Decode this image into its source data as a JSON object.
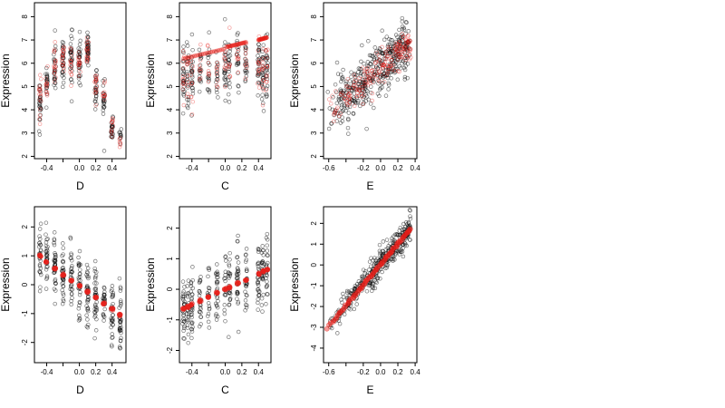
{
  "chart_data": [
    {
      "type": "scatter",
      "xlabel": "D",
      "ylabel": "Expression",
      "xlim": [
        -0.55,
        0.57
      ],
      "ylim": [
        1.9,
        8.6
      ],
      "xticks": [
        -0.4,
        -0.2,
        0.0,
        0.2,
        0.4
      ],
      "xtick_labels": [
        "-0.4",
        "",
        "0.0",
        "0.2",
        "0.4"
      ],
      "yticks": [
        2,
        3,
        4,
        5,
        6,
        7,
        8
      ],
      "ytick_labels": [
        "2",
        "3",
        "4",
        "5",
        "6",
        "7",
        "8"
      ],
      "series": [
        {
          "color": "#000000",
          "columns": [
            {
              "x": -0.48,
              "center": 4.4,
              "spread": 0.8,
              "n": 26
            },
            {
              "x": -0.4,
              "center": 5.1,
              "spread": 0.8,
              "n": 20
            },
            {
              "x": -0.3,
              "center": 5.8,
              "spread": 0.9,
              "n": 26
            },
            {
              "x": -0.2,
              "center": 6.1,
              "spread": 0.8,
              "n": 30
            },
            {
              "x": -0.1,
              "center": 6.3,
              "spread": 0.8,
              "n": 30
            },
            {
              "x": 0.0,
              "center": 6.1,
              "spread": 0.9,
              "n": 30
            },
            {
              "x": 0.1,
              "center": 6.6,
              "spread": 0.6,
              "n": 34
            },
            {
              "x": 0.2,
              "center": 5.0,
              "spread": 0.8,
              "n": 24
            },
            {
              "x": 0.3,
              "center": 4.5,
              "spread": 0.9,
              "n": 22
            },
            {
              "x": 0.4,
              "center": 3.3,
              "spread": 0.5,
              "n": 22
            },
            {
              "x": 0.5,
              "center": 3.0,
              "spread": 0.5,
              "n": 10
            }
          ]
        },
        {
          "color": "#e8201a",
          "columns": [
            {
              "x": -0.48,
              "center": 4.5,
              "spread": 0.8,
              "n": 16
            },
            {
              "x": -0.4,
              "center": 5.0,
              "spread": 0.6,
              "n": 12
            },
            {
              "x": -0.3,
              "center": 5.9,
              "spread": 0.6,
              "n": 16
            },
            {
              "x": -0.2,
              "center": 6.2,
              "spread": 0.5,
              "n": 16
            },
            {
              "x": -0.1,
              "center": 6.0,
              "spread": 0.6,
              "n": 14
            },
            {
              "x": 0.0,
              "center": 6.0,
              "spread": 0.5,
              "n": 14
            },
            {
              "x": 0.1,
              "center": 6.6,
              "spread": 0.5,
              "n": 16
            },
            {
              "x": 0.2,
              "center": 5.1,
              "spread": 0.6,
              "n": 14
            },
            {
              "x": 0.3,
              "center": 4.6,
              "spread": 0.5,
              "n": 10
            },
            {
              "x": 0.4,
              "center": 3.4,
              "spread": 0.4,
              "n": 10
            },
            {
              "x": 0.5,
              "center": 2.6,
              "spread": 0.4,
              "n": 6
            }
          ]
        }
      ]
    },
    {
      "type": "scatter",
      "xlabel": "C",
      "ylabel": "Expression",
      "xlim": [
        -0.55,
        0.55
      ],
      "ylim": [
        1.9,
        8.6
      ],
      "xticks": [
        -0.4,
        -0.2,
        0.0,
        0.2,
        0.4
      ],
      "xtick_labels": [
        "-0.4",
        "",
        "0.0",
        "0.2",
        "0.4"
      ],
      "yticks": [
        2,
        3,
        4,
        5,
        6,
        7,
        8
      ],
      "ytick_labels": [
        "2",
        "3",
        "4",
        "5",
        "6",
        "7",
        "8"
      ],
      "series": [
        {
          "color": "#000000",
          "columns": [
            {
              "x": -0.5,
              "center": 5.3,
              "spread": 1.3,
              "n": 24
            },
            {
              "x": -0.45,
              "center": 5.5,
              "spread": 1.2,
              "n": 22
            },
            {
              "x": -0.4,
              "center": 5.4,
              "spread": 1.3,
              "n": 24
            },
            {
              "x": -0.3,
              "center": 5.6,
              "spread": 1.0,
              "n": 18
            },
            {
              "x": -0.2,
              "center": 5.8,
              "spread": 1.0,
              "n": 18
            },
            {
              "x": -0.1,
              "center": 5.6,
              "spread": 1.1,
              "n": 16
            },
            {
              "x": 0.0,
              "center": 5.9,
              "spread": 1.2,
              "n": 24
            },
            {
              "x": 0.05,
              "center": 6.0,
              "spread": 1.1,
              "n": 20
            },
            {
              "x": 0.15,
              "center": 6.0,
              "spread": 1.0,
              "n": 20
            },
            {
              "x": 0.25,
              "center": 6.2,
              "spread": 1.0,
              "n": 20
            },
            {
              "x": 0.4,
              "center": 5.9,
              "spread": 1.3,
              "n": 24
            },
            {
              "x": 0.45,
              "center": 5.6,
              "spread": 1.3,
              "n": 26
            },
            {
              "x": 0.5,
              "center": 5.8,
              "spread": 1.2,
              "n": 24
            }
          ]
        },
        {
          "color": "#e8201a",
          "columns": [
            {
              "x": -0.5,
              "center": 5.4,
              "spread": 1.1,
              "n": 12
            },
            {
              "x": -0.45,
              "center": 5.6,
              "spread": 1.0,
              "n": 10
            },
            {
              "x": -0.4,
              "center": 5.4,
              "spread": 1.1,
              "n": 10
            },
            {
              "x": -0.3,
              "center": 5.8,
              "spread": 0.8,
              "n": 8
            },
            {
              "x": -0.2,
              "center": 5.8,
              "spread": 0.8,
              "n": 8
            },
            {
              "x": -0.1,
              "center": 5.5,
              "spread": 0.8,
              "n": 8
            },
            {
              "x": 0.0,
              "center": 6.0,
              "spread": 0.9,
              "n": 10
            },
            {
              "x": 0.05,
              "center": 6.0,
              "spread": 0.8,
              "n": 8
            },
            {
              "x": 0.15,
              "center": 6.1,
              "spread": 0.8,
              "n": 8
            },
            {
              "x": 0.25,
              "center": 6.1,
              "spread": 0.8,
              "n": 8
            },
            {
              "x": 0.4,
              "center": 5.8,
              "spread": 1.1,
              "n": 12
            },
            {
              "x": 0.45,
              "center": 5.7,
              "spread": 1.1,
              "n": 12
            },
            {
              "x": 0.5,
              "center": 5.9,
              "spread": 1.0,
              "n": 12
            }
          ]
        }
      ],
      "fit_segments": [
        {
          "x": [
            -0.5,
            -0.02
          ],
          "y": [
            6.2,
            6.6
          ]
        },
        {
          "x": 0.02,
          "y": 6.7,
          "x2": 0.25,
          "y2": 6.9
        },
        {
          "x": [
            0.4,
            0.5
          ],
          "y": [
            7.0,
            7.1
          ]
        }
      ]
    },
    {
      "type": "scatter",
      "xlabel": "E",
      "ylabel": "Expression",
      "xlim": [
        -0.66,
        0.42
      ],
      "ylim": [
        1.9,
        8.6
      ],
      "xticks": [
        -0.6,
        -0.4,
        -0.2,
        0.0,
        0.2,
        0.4
      ],
      "xtick_labels": [
        "-0.6",
        "",
        "-0.2",
        "0.0",
        "0.2",
        "0.4"
      ],
      "yticks": [
        2,
        3,
        4,
        5,
        6,
        7,
        8
      ],
      "ytick_labels": [
        "2",
        "3",
        "4",
        "5",
        "6",
        "7",
        "8"
      ],
      "series": [
        {
          "color": "#000000",
          "trend": {
            "x0": -0.62,
            "y0": 3.8,
            "x1": 0.35,
            "y1": 6.9,
            "xmin": -0.62,
            "xmax": 0.35,
            "spread": 0.9,
            "n": 420
          }
        },
        {
          "color": "#e8201a",
          "trend": {
            "x0": -0.62,
            "y0": 3.9,
            "x1": 0.35,
            "y1": 6.9,
            "xmin": -0.62,
            "xmax": 0.35,
            "spread": 0.6,
            "n": 200
          }
        }
      ]
    },
    {
      "type": "scatter",
      "xlabel": "D",
      "ylabel": "Expression",
      "xlim": [
        -0.55,
        0.57
      ],
      "ylim": [
        -2.7,
        2.7
      ],
      "xticks": [
        -0.4,
        -0.2,
        0.0,
        0.2,
        0.4
      ],
      "xtick_labels": [
        "-0.4",
        "",
        "0.0",
        "0.2",
        "0.4"
      ],
      "yticks": [
        -2,
        -1,
        0,
        1,
        2
      ],
      "ytick_labels": [
        "-2",
        "-1",
        "0",
        "1",
        "2"
      ],
      "series": [
        {
          "color": "#000000",
          "trend": {
            "x0": -0.5,
            "y0": 1.1,
            "x1": 0.5,
            "y1": -1.1,
            "xmin": -0.5,
            "xmax": 0.52,
            "spread": 0.9,
            "n": 360,
            "cols": [
              -0.48,
              -0.4,
              -0.3,
              -0.2,
              -0.1,
              0.0,
              0.1,
              0.2,
              0.3,
              0.4,
              0.5
            ]
          }
        }
      ],
      "fit_points": {
        "color": "#e8201a",
        "x": [
          -0.48,
          -0.4,
          -0.3,
          -0.2,
          -0.1,
          0.0,
          0.1,
          0.2,
          0.3,
          0.4,
          0.5
        ],
        "y": [
          1.0,
          0.8,
          0.55,
          0.35,
          0.15,
          -0.05,
          -0.25,
          -0.45,
          -0.65,
          -0.85,
          -1.05
        ]
      }
    },
    {
      "type": "scatter",
      "xlabel": "C",
      "ylabel": "Expression",
      "xlim": [
        -0.55,
        0.55
      ],
      "ylim": [
        -2.4,
        2.7
      ],
      "xticks": [
        -0.4,
        -0.2,
        0.0,
        0.2,
        0.4
      ],
      "xtick_labels": [
        "-0.4",
        "",
        "0.0",
        "0.2",
        "0.4"
      ],
      "yticks": [
        -2,
        -1,
        0,
        1,
        2
      ],
      "ytick_labels": [
        "-2",
        "-1",
        "0",
        "1",
        "2"
      ],
      "series": [
        {
          "color": "#000000",
          "trend": {
            "x0": -0.5,
            "y0": -0.65,
            "x1": 0.5,
            "y1": 0.65,
            "xmin": -0.5,
            "xmax": 0.5,
            "spread": 0.9,
            "n": 330,
            "cols": [
              -0.5,
              -0.45,
              -0.4,
              -0.3,
              -0.2,
              -0.1,
              0.0,
              0.05,
              0.15,
              0.25,
              0.4,
              0.45,
              0.5
            ]
          }
        }
      ],
      "fit_points": {
        "color": "#e8201a",
        "x": [
          -0.5,
          -0.45,
          -0.4,
          -0.3,
          -0.2,
          -0.1,
          0.0,
          0.05,
          0.15,
          0.25,
          0.4,
          0.45,
          0.5
        ],
        "y": [
          -0.65,
          -0.58,
          -0.5,
          -0.38,
          -0.25,
          -0.12,
          0.0,
          0.06,
          0.2,
          0.32,
          0.5,
          0.58,
          0.65
        ]
      }
    },
    {
      "type": "scatter",
      "xlabel": "E",
      "ylabel": "Expression",
      "xlim": [
        -0.66,
        0.42
      ],
      "ylim": [
        -4.7,
        2.8
      ],
      "xticks": [
        -0.6,
        -0.4,
        -0.2,
        0.0,
        0.2,
        0.4
      ],
      "xtick_labels": [
        "-0.6",
        "",
        "-0.2",
        "0.0",
        "0.2",
        "0.4"
      ],
      "yticks": [
        -4,
        -3,
        -2,
        -1,
        0,
        1,
        2
      ],
      "ytick_labels": [
        "-4",
        "-3",
        "-2",
        "-1",
        "0",
        "1",
        "2"
      ],
      "series": [
        {
          "color": "#000000",
          "trend": {
            "x0": -0.62,
            "y0": -3.0,
            "x1": 0.35,
            "y1": 1.8,
            "xmin": -0.62,
            "xmax": 0.35,
            "spread": 0.55,
            "n": 380
          }
        }
      ],
      "fit_line": {
        "color": "#e8201a",
        "x0": -0.62,
        "y0": -3.05,
        "x1": 0.35,
        "y1": 1.75,
        "n": 90
      }
    }
  ]
}
